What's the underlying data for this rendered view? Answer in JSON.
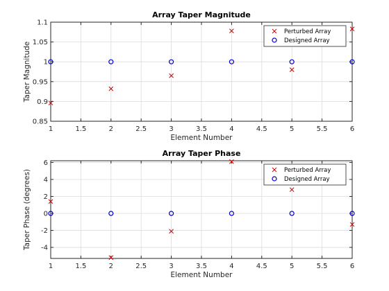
{
  "chart_data": [
    {
      "type": "scatter",
      "title": "Array Taper Magnitude",
      "xlabel": "Element Number",
      "ylabel": "Taper Magnitude",
      "xlim": [
        1,
        6
      ],
      "ylim": [
        0.85,
        1.1
      ],
      "xticks": [
        1,
        1.5,
        2,
        2.5,
        3,
        3.5,
        4,
        4.5,
        5,
        5.5,
        6
      ],
      "yticks": [
        0.85,
        0.9,
        0.95,
        1,
        1.05,
        1.1
      ],
      "xtick_labels": [
        "1",
        "1.5",
        "2",
        "2.5",
        "3",
        "3.5",
        "4",
        "4.5",
        "5",
        "5.5",
        "6"
      ],
      "ytick_labels": [
        "0.85",
        "0.9",
        "0.95",
        "1",
        "1.05",
        "1.1"
      ],
      "grid": true,
      "legend_position": "top-right",
      "series": [
        {
          "name": "Perturbed Array",
          "marker": "x",
          "color": "#cc0000",
          "x": [
            1,
            2,
            3,
            4,
            5,
            6
          ],
          "y": [
            0.896,
            0.932,
            0.965,
            1.078,
            0.98,
            1.083
          ]
        },
        {
          "name": "Designed Array",
          "marker": "o",
          "color": "#0000cc",
          "x": [
            1,
            2,
            3,
            4,
            5,
            6
          ],
          "y": [
            1,
            1,
            1,
            1,
            1,
            1
          ]
        }
      ]
    },
    {
      "type": "scatter",
      "title": "Array Taper Phase",
      "xlabel": "Element Number",
      "ylabel": "Taper Phase (degrees)",
      "xlim": [
        1,
        6
      ],
      "ylim": [
        -5.3,
        6.2
      ],
      "xticks": [
        1,
        1.5,
        2,
        2.5,
        3,
        3.5,
        4,
        4.5,
        5,
        5.5,
        6
      ],
      "yticks": [
        -4,
        -2,
        0,
        2,
        4,
        6
      ],
      "xtick_labels": [
        "1",
        "1.5",
        "2",
        "2.5",
        "3",
        "3.5",
        "4",
        "4.5",
        "5",
        "5.5",
        "6"
      ],
      "ytick_labels": [
        "-4",
        "-2",
        "0",
        "2",
        "4",
        "6"
      ],
      "grid": true,
      "legend_position": "top-right",
      "series": [
        {
          "name": "Perturbed Array",
          "marker": "x",
          "color": "#cc0000",
          "x": [
            1,
            2,
            3,
            4,
            5,
            6
          ],
          "y": [
            1.4,
            -5.2,
            -2.1,
            6.1,
            2.8,
            -1.3
          ]
        },
        {
          "name": "Designed Array",
          "marker": "o",
          "color": "#0000cc",
          "x": [
            1,
            2,
            3,
            4,
            5,
            6
          ],
          "y": [
            0,
            0,
            0,
            0,
            0,
            0
          ]
        }
      ]
    }
  ]
}
